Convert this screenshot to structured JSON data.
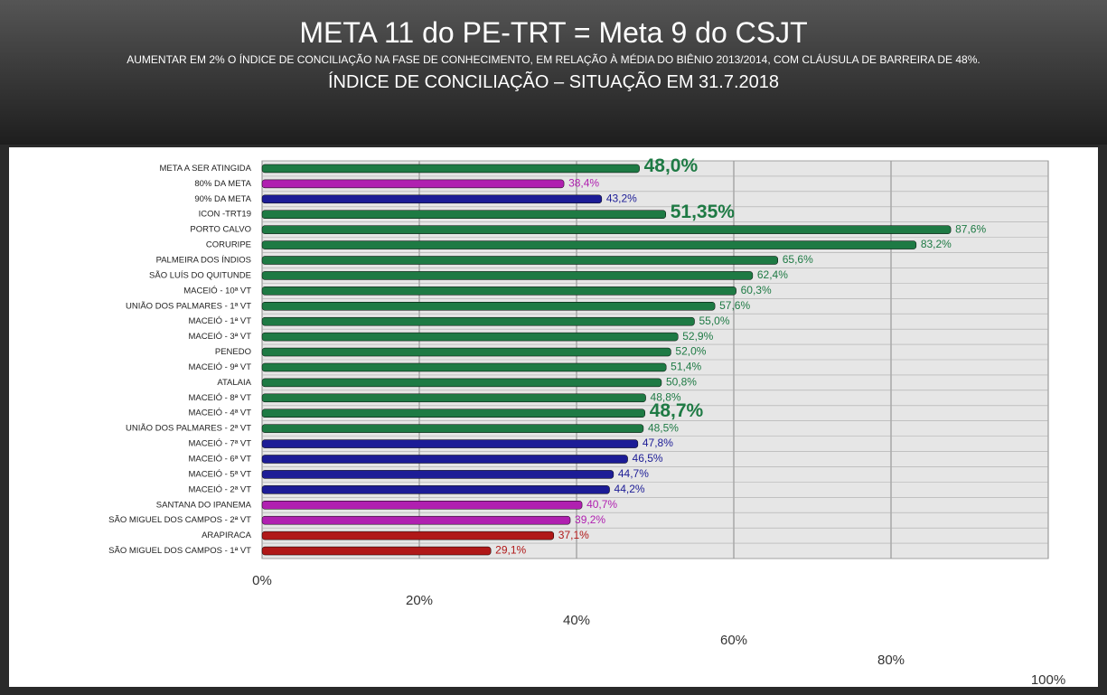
{
  "chart_data": {
    "type": "bar",
    "orientation": "horizontal",
    "title": "META 11 do PE-TRT = Meta 9 do CSJT",
    "subtitle": "AUMENTAR EM 2% O ÍNDICE DE CONCILIAÇÃO NA FASE DE CONHECIMENTO, EM RELAÇÃO À MÉDIA DO BIÊNIO 2013/2014, COM CLÁUSULA DE BARREIRA DE 48%.",
    "heading": "ÍNDICE DE CONCILIAÇÃO – SITUAÇÃO EM 31.7.2018",
    "categories": [
      "META A SER ATINGIDA",
      "80% DA META",
      "90% DA META",
      "ICON -TRT19",
      "PORTO CALVO",
      "CORURIPE",
      "PALMEIRA DOS ÍNDIOS",
      "SÃO LUÍS DO QUITUNDE",
      "MACEIÓ - 10ª VT",
      "UNIÃO DOS PALMARES - 1ª VT",
      "MACEIÓ - 1ª VT",
      "MACEIÓ - 3ª VT",
      "PENEDO",
      "MACEIÓ - 9ª VT",
      "ATALAIA",
      "MACEIÓ - 8ª VT",
      "MACEIÓ - 4ª VT",
      "UNIÃO DOS PALMARES - 2ª VT",
      "MACEIÓ - 7ª VT",
      "MACEIÓ - 6ª VT",
      "MACEIÓ - 5ª VT",
      "MACEIÓ - 2ª VT",
      "SANTANA DO IPANEMA",
      "SÃO MIGUEL DOS CAMPOS - 2ª VT",
      "ARAPIRACA",
      "SÃO MIGUEL DOS CAMPOS - 1ª VT"
    ],
    "values": [
      48.0,
      38.4,
      43.2,
      51.35,
      87.6,
      83.2,
      65.6,
      62.4,
      60.3,
      57.6,
      55.0,
      52.9,
      52.0,
      51.4,
      50.8,
      48.8,
      48.7,
      48.5,
      47.8,
      46.5,
      44.7,
      44.2,
      40.7,
      39.2,
      37.1,
      29.1
    ],
    "value_labels": [
      "48,0%",
      "38,4%",
      "43,2%",
      "51,35%",
      "87,6%",
      "83,2%",
      "65,6%",
      "62,4%",
      "60,3%",
      "57,6%",
      "55,0%",
      "52,9%",
      "52,0%",
      "51,4%",
      "50,8%",
      "48,8%",
      "48,7%",
      "48,5%",
      "47,8%",
      "46,5%",
      "44,7%",
      "44,2%",
      "40,7%",
      "39,2%",
      "37,1%",
      "29,1%"
    ],
    "colors": [
      "#1e7a44",
      "#b020b0",
      "#1c1c96",
      "#1e7a44",
      "#1e7a44",
      "#1e7a44",
      "#1e7a44",
      "#1e7a44",
      "#1e7a44",
      "#1e7a44",
      "#1e7a44",
      "#1e7a44",
      "#1e7a44",
      "#1e7a44",
      "#1e7a44",
      "#1e7a44",
      "#1e7a44",
      "#1e7a44",
      "#1c1c96",
      "#1c1c96",
      "#1c1c96",
      "#1c1c96",
      "#b020b0",
      "#b020b0",
      "#b01818",
      "#b01818"
    ],
    "large_labels": [
      0,
      3,
      16
    ],
    "xlim": [
      0,
      100
    ],
    "xticks": [
      {
        "value": 0,
        "label": "0%"
      },
      {
        "value": 20,
        "label": "20%"
      },
      {
        "value": 40,
        "label": "40%"
      },
      {
        "value": 60,
        "label": "60%"
      },
      {
        "value": 80,
        "label": "80%"
      },
      {
        "value": 100,
        "label": "100%"
      }
    ],
    "grid": true
  }
}
